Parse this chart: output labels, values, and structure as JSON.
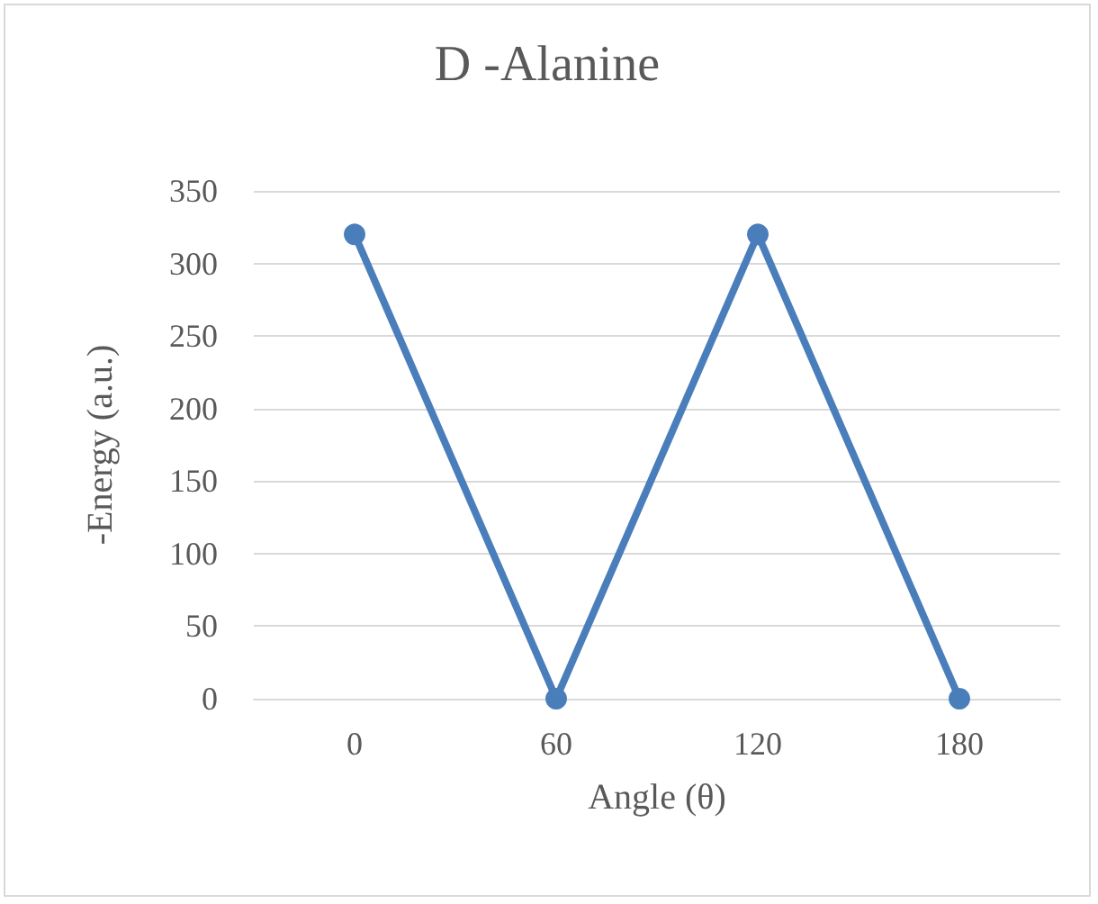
{
  "chart_data": {
    "type": "line",
    "title": "D -Alanine",
    "xlabel": "Angle (θ)",
    "ylabel": "-Energy (a.u.)",
    "categories": [
      "0",
      "60",
      "120",
      "180"
    ],
    "series": [
      {
        "color": "#4a7ebb",
        "values": [
          320,
          0,
          320,
          0
        ]
      }
    ],
    "ylim": [
      0,
      350
    ],
    "yticks": [
      0,
      50,
      100,
      150,
      200,
      250,
      300,
      350
    ],
    "grid": "y",
    "marker": "circle",
    "line_style": "solid"
  }
}
